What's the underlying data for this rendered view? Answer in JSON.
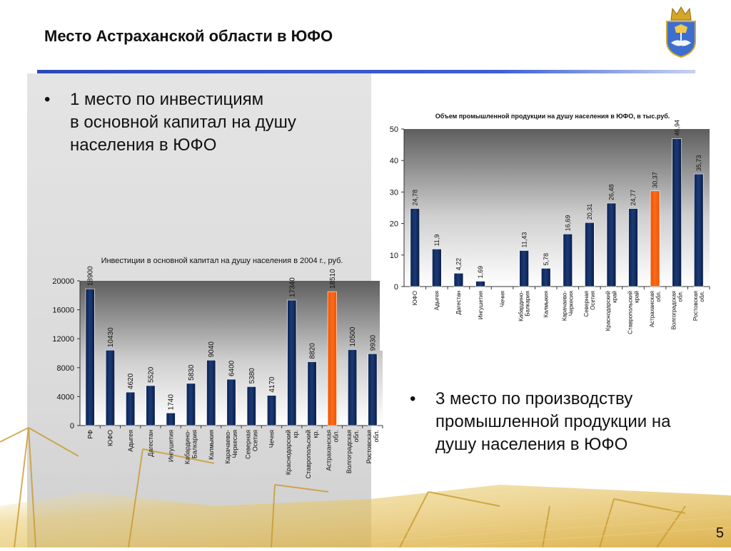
{
  "slide": {
    "title": "Место Астраханской области в ЮФО",
    "page_number": "5"
  },
  "bullets": [
    {
      "lines": [
        "1 место по инвестициям",
        "в основной капитал на душу",
        "населения в ЮФО"
      ]
    },
    {
      "lines": [
        "3 место по производству",
        "промышленной продукции на",
        "душу населения в ЮФО"
      ]
    }
  ],
  "icons": {
    "bullet": "bullet-dot-icon",
    "emblem": "astrakhan-coat-of-arms-icon"
  },
  "colors": {
    "bar": "#1a3a78",
    "highlight": "#ff6a13",
    "rule": "#2d49b8"
  },
  "chart_data": [
    {
      "type": "bar",
      "title": "Инвестиции в основной капитал на душу населения в 2004 г., руб.",
      "categories": [
        "РФ",
        "ЮФО",
        "Адыгея",
        "Дагестан",
        "Ингушетия",
        "Кабардино-Балкария",
        "Калмыкия",
        "Карачаево-Черкесия",
        "Северная Осетия",
        "Чечня",
        "Краснодарский кр.",
        "Ставропольский кр.",
        "Астраханская обл.",
        "Волгоградская обл.",
        "Ростовская обл."
      ],
      "values": [
        18900,
        10430,
        4620,
        5520,
        1740,
        5830,
        9040,
        6400,
        5380,
        4170,
        17340,
        8820,
        18510,
        10500,
        9930
      ],
      "value_labels": [
        "18900",
        "10430",
        "4620",
        "5520",
        "1740",
        "5830",
        "9040",
        "6400",
        "5380",
        "4170",
        "17340",
        "8820",
        "18510",
        "10500",
        "9930"
      ],
      "highlight_index": 12,
      "yticks": [
        "0",
        "4000",
        "8000",
        "12000",
        "16000",
        "20000"
      ],
      "ylim": [
        0,
        20000
      ]
    },
    {
      "type": "bar",
      "title": "Объем промышленной продукции на душу населения в ЮФО, в тыс.руб.",
      "categories": [
        "ЮФО",
        "Адыгея",
        "Дагестан",
        "Ингушетия",
        "Чечня",
        "Кабардино-Балкария",
        "Калмыкия",
        "Карачаево-Черкесия",
        "Северная Осетия",
        "Краснодарский край",
        "Ставропольский край",
        "Астраханская обл.",
        "Волгоградская обл.",
        "Ростовская обл."
      ],
      "values": [
        24.78,
        11.9,
        4.22,
        1.69,
        0,
        11.43,
        5.78,
        16.69,
        20.31,
        26.48,
        24.77,
        30.37,
        46.94,
        35.73
      ],
      "value_labels": [
        "24,78",
        "11,9",
        "4,22",
        "1,69",
        "",
        "11,43",
        "5,78",
        "16,69",
        "20,31",
        "26,48",
        "24,77",
        "30,37",
        "46,94",
        "35,73"
      ],
      "highlight_index": 11,
      "yticks": [
        "0",
        "10",
        "20",
        "30",
        "40",
        "50"
      ],
      "ylim": [
        0,
        50
      ]
    }
  ]
}
